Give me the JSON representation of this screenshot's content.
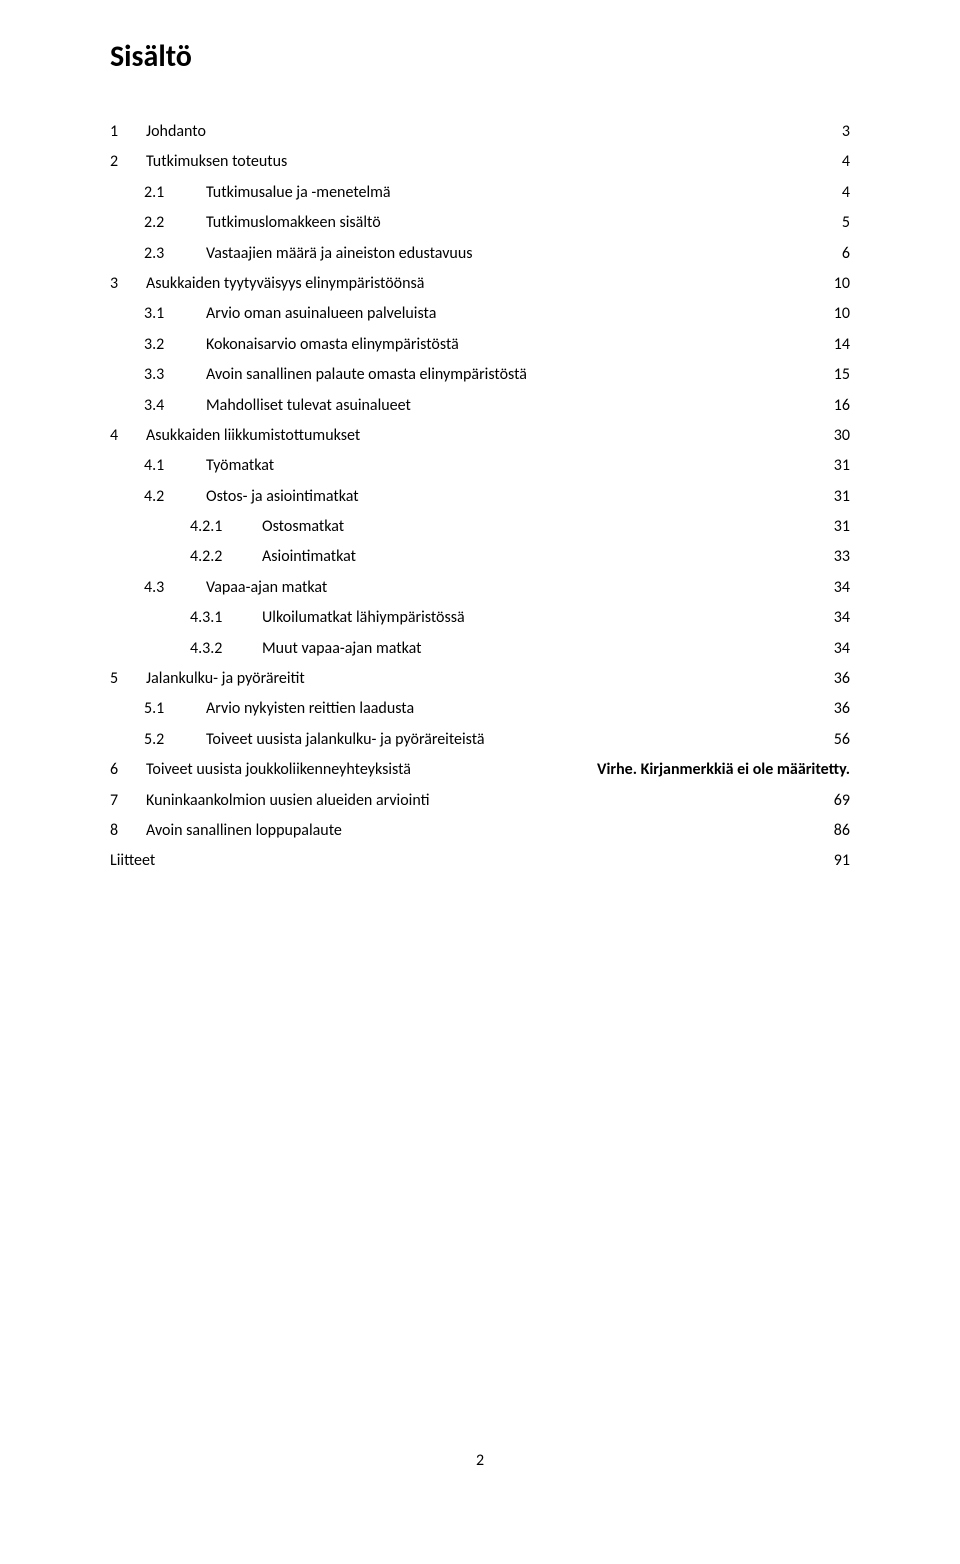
{
  "title": "Sisältö",
  "page_number": "2",
  "entries": [
    {
      "level": 0,
      "num": "1",
      "label": "Johdanto",
      "page": "3"
    },
    {
      "level": 0,
      "num": "2",
      "label": "Tutkimuksen toteutus",
      "page": "4"
    },
    {
      "level": 1,
      "num": "2.1",
      "label": "Tutkimusalue ja -menetelmä",
      "page": "4"
    },
    {
      "level": 1,
      "num": "2.2",
      "label": "Tutkimuslomakkeen sisältö",
      "page": "5"
    },
    {
      "level": 1,
      "num": "2.3",
      "label": "Vastaajien määrä ja aineiston edustavuus",
      "page": "6"
    },
    {
      "level": 0,
      "num": "3",
      "label": "Asukkaiden tyytyväisyys elinympäristöönsä",
      "page": "10"
    },
    {
      "level": 1,
      "num": "3.1",
      "label": "Arvio oman asuinalueen palveluista",
      "page": "10"
    },
    {
      "level": 1,
      "num": "3.2",
      "label": "Kokonaisarvio omasta elinympäristöstä",
      "page": "14"
    },
    {
      "level": 1,
      "num": "3.3",
      "label": "Avoin sanallinen palaute omasta elinympäristöstä",
      "page": "15"
    },
    {
      "level": 1,
      "num": "3.4",
      "label": "Mahdolliset tulevat asuinalueet",
      "page": "16"
    },
    {
      "level": 0,
      "num": "4",
      "label": "Asukkaiden liikkumistottumukset",
      "page": "30"
    },
    {
      "level": 1,
      "num": "4.1",
      "label": "Työmatkat",
      "page": "31"
    },
    {
      "level": 1,
      "num": "4.2",
      "label": "Ostos- ja asiointimatkat",
      "page": "31"
    },
    {
      "level": 2,
      "num": "4.2.1",
      "label": "Ostosmatkat",
      "page": "31"
    },
    {
      "level": 2,
      "num": "4.2.2",
      "label": "Asiointimatkat",
      "page": "33"
    },
    {
      "level": 1,
      "num": "4.3",
      "label": "Vapaa-ajan matkat",
      "page": "34"
    },
    {
      "level": 2,
      "num": "4.3.1",
      "label": "Ulkoilumatkat lähiympäristössä",
      "page": "34"
    },
    {
      "level": 2,
      "num": "4.3.2",
      "label": "Muut vapaa-ajan matkat",
      "page": "34"
    },
    {
      "level": 0,
      "num": "5",
      "label": "Jalankulku- ja pyöräreitit",
      "page": "36"
    },
    {
      "level": 1,
      "num": "5.1",
      "label": "Arvio nykyisten reittien laadusta",
      "page": "36"
    },
    {
      "level": 1,
      "num": "5.2",
      "label": "Toiveet uusista jalankulku- ja pyöräreiteistä",
      "page": "56"
    },
    {
      "level": 0,
      "num": "6",
      "label": "Toiveet uusista joukkoliikenneyhteyksistä",
      "page": "Virhe. Kirjanmerkkiä ei ole määritetty."
    },
    {
      "level": 0,
      "num": "7",
      "label": "Kuninkaankolmion uusien alueiden arviointi",
      "page": "69"
    },
    {
      "level": 0,
      "num": "8",
      "label": "Avoin sanallinen loppupalaute",
      "page": "86"
    },
    {
      "level": 0,
      "num": "",
      "label": "Liitteet",
      "page": "91"
    }
  ]
}
